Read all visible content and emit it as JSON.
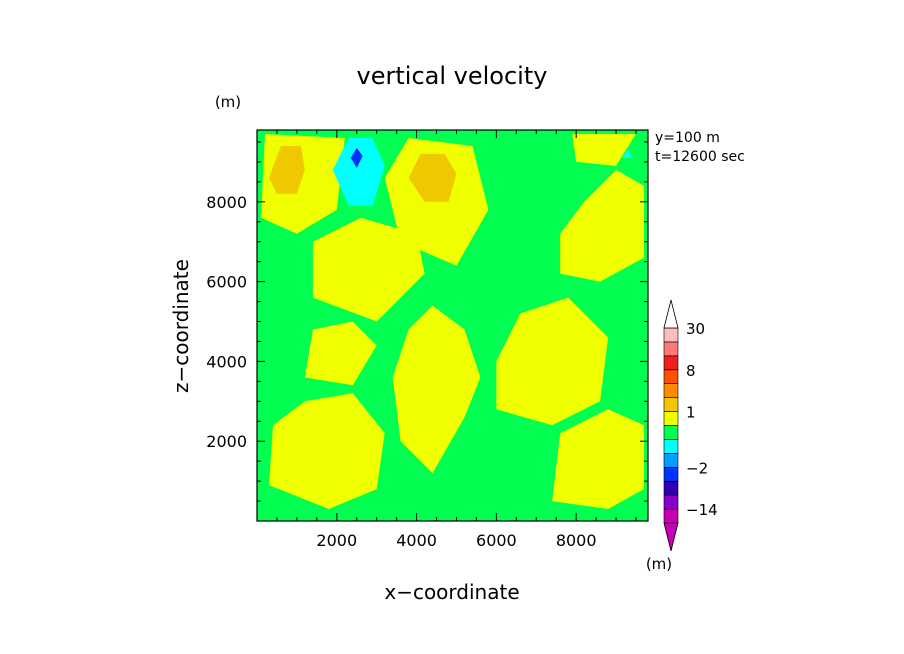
{
  "chart_data": {
    "type": "heatmap",
    "title": "vertical velocity",
    "xlabel": "x−coordinate",
    "ylabel": "z−coordinate",
    "y_unit": "(m)",
    "colorbar_unit": "(m)",
    "annotation": [
      "y=100  m",
      "t=12600 sec"
    ],
    "xlim": [
      0,
      9800
    ],
    "ylim": [
      0,
      9800
    ],
    "x_ticks": [
      2000,
      4000,
      6000,
      8000
    ],
    "x_tick_labels": [
      "2000",
      "4000",
      "6000",
      "8000"
    ],
    "y_ticks": [
      2000,
      4000,
      6000,
      8000
    ],
    "y_tick_labels": [
      "2000",
      "4000",
      "6000",
      "8000"
    ],
    "levels": [
      -20,
      -14,
      -8,
      -4,
      -2,
      -1,
      -0.5,
      0.5,
      1,
      2,
      4,
      8,
      14,
      20,
      30
    ],
    "colorbar_labels": [
      {
        "value": 30,
        "text": "30"
      },
      {
        "value": 8,
        "text": "8"
      },
      {
        "value": 1,
        "text": "1"
      },
      {
        "value": -2,
        "text": "−2"
      },
      {
        "value": -14,
        "text": "−14"
      }
    ],
    "colors": {
      "below": "#c800b4",
      "bands": [
        "#c800b4",
        "#8c00c8",
        "#3200b4",
        "#0032ff",
        "#00a0ff",
        "#00ffff",
        "#00ff50",
        "#f0ff00",
        "#f0c800",
        "#ff8c00",
        "#ff5000",
        "#f01e1e",
        "#ff7878",
        "#ffbebe"
      ],
      "above": "#ffffff",
      "background": "#00ff50"
    },
    "regions": [
      {
        "level": "positive",
        "color": "#f0ff00",
        "points": [
          [
            3600,
            2000
          ],
          [
            4400,
            1200
          ],
          [
            5200,
            2600
          ],
          [
            5600,
            3600
          ],
          [
            5200,
            4800
          ],
          [
            4400,
            5400
          ],
          [
            3800,
            4800
          ],
          [
            3400,
            3600
          ]
        ]
      },
      {
        "level": "positive",
        "color": "#f0ff00",
        "points": [
          [
            300,
            900
          ],
          [
            1800,
            300
          ],
          [
            3000,
            800
          ],
          [
            3200,
            2200
          ],
          [
            2400,
            3200
          ],
          [
            1200,
            3000
          ],
          [
            400,
            2400
          ]
        ]
      },
      {
        "level": "positive",
        "color": "#f0ff00",
        "points": [
          [
            6000,
            2800
          ],
          [
            7400,
            2400
          ],
          [
            8600,
            3000
          ],
          [
            8800,
            4600
          ],
          [
            7800,
            5600
          ],
          [
            6600,
            5200
          ],
          [
            6000,
            4000
          ]
        ]
      },
      {
        "level": "positive",
        "color": "#f0ff00",
        "points": [
          [
            1400,
            5600
          ],
          [
            3000,
            5000
          ],
          [
            4200,
            6200
          ],
          [
            4000,
            7200
          ],
          [
            2600,
            7600
          ],
          [
            1400,
            7000
          ]
        ]
      },
      {
        "level": "positive",
        "color": "#f0ff00",
        "points": [
          [
            3600,
            7000
          ],
          [
            5000,
            6400
          ],
          [
            5800,
            7800
          ],
          [
            5400,
            9400
          ],
          [
            3800,
            9600
          ],
          [
            3200,
            8600
          ]
        ]
      },
      {
        "level": "positive",
        "color": "#f0ff00",
        "points": [
          [
            100,
            7600
          ],
          [
            1000,
            7200
          ],
          [
            2000,
            7800
          ],
          [
            2200,
            9600
          ],
          [
            200,
            9700
          ]
        ]
      },
      {
        "level": "positive",
        "color": "#f0ff00",
        "points": [
          [
            7400,
            500
          ],
          [
            8800,
            300
          ],
          [
            9700,
            800
          ],
          [
            9700,
            2400
          ],
          [
            8800,
            2800
          ],
          [
            7600,
            2200
          ]
        ]
      },
      {
        "level": "positive",
        "color": "#f0ff00",
        "points": [
          [
            7600,
            6200
          ],
          [
            8600,
            6000
          ],
          [
            9700,
            6600
          ],
          [
            9700,
            8400
          ],
          [
            9000,
            8800
          ],
          [
            8200,
            8000
          ],
          [
            7600,
            7200
          ]
        ]
      },
      {
        "level": "positive",
        "color": "#f0ff00",
        "points": [
          [
            1200,
            3600
          ],
          [
            2400,
            3400
          ],
          [
            3000,
            4400
          ],
          [
            2400,
            5000
          ],
          [
            1400,
            4800
          ]
        ]
      },
      {
        "level": "positive",
        "color": "#f0ff00",
        "points": [
          [
            8000,
            9000
          ],
          [
            9000,
            8900
          ],
          [
            9500,
            9700
          ],
          [
            7900,
            9700
          ]
        ]
      },
      {
        "level": "strong-positive",
        "color": "#f0c800",
        "points": [
          [
            300,
            8600
          ],
          [
            600,
            9400
          ],
          [
            1100,
            9400
          ],
          [
            1200,
            8800
          ],
          [
            1000,
            8200
          ],
          [
            500,
            8200
          ]
        ]
      },
      {
        "level": "strong-positive",
        "color": "#f0c800",
        "points": [
          [
            3800,
            8600
          ],
          [
            4100,
            9200
          ],
          [
            4700,
            9200
          ],
          [
            5000,
            8700
          ],
          [
            4800,
            8000
          ],
          [
            4200,
            8000
          ]
        ]
      },
      {
        "level": "negative",
        "color": "#00ffff",
        "points": [
          [
            1900,
            8800
          ],
          [
            2300,
            9600
          ],
          [
            2900,
            9600
          ],
          [
            3200,
            8900
          ],
          [
            2900,
            7900
          ],
          [
            2300,
            7900
          ]
        ]
      },
      {
        "level": "strong-negative",
        "color": "#0032ff",
        "points": [
          [
            2350,
            9100
          ],
          [
            2500,
            9350
          ],
          [
            2650,
            9150
          ],
          [
            2500,
            8850
          ]
        ]
      },
      {
        "level": "negative",
        "color": "#00ffff",
        "points": [
          [
            9150,
            9100
          ],
          [
            9300,
            9300
          ],
          [
            9400,
            9100
          ]
        ]
      }
    ]
  }
}
